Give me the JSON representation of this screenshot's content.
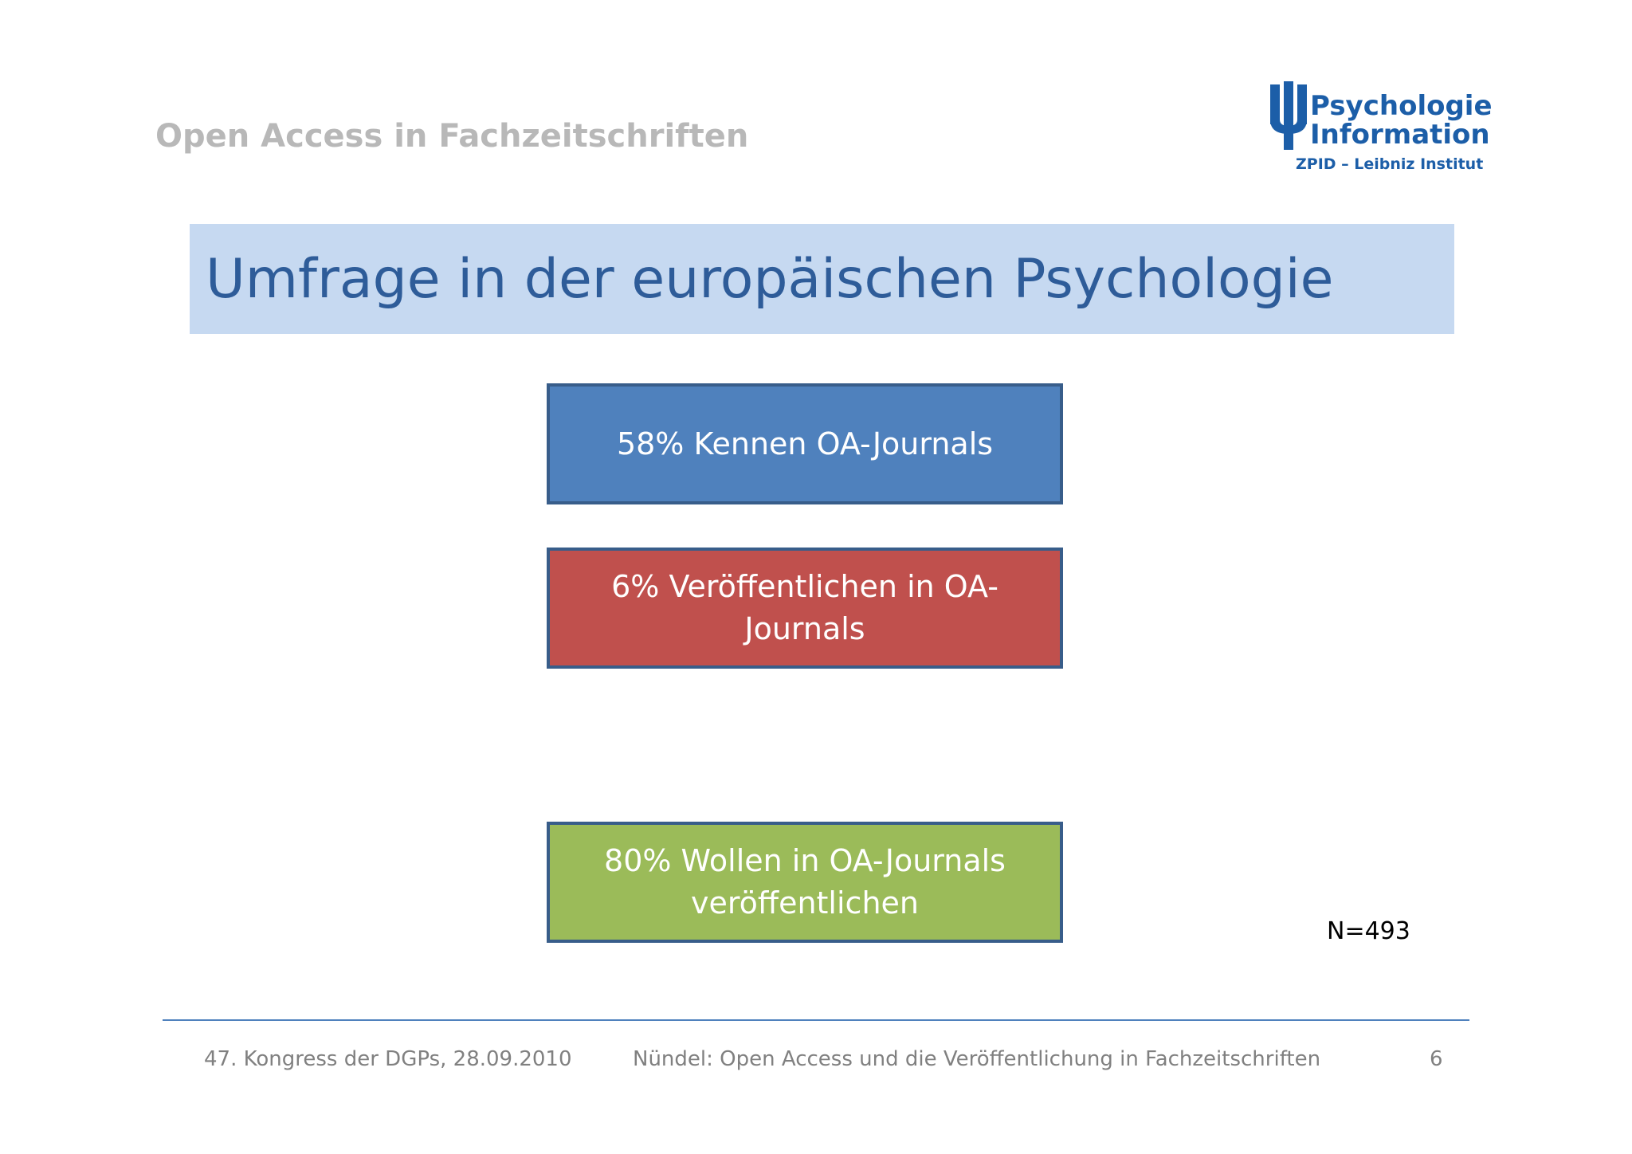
{
  "header": {
    "title": "Open Access in Fachzeitschriften",
    "logo": {
      "line1": "Psychologie",
      "line2": "Information",
      "line3": "ZPID – Leibniz Institut",
      "color": "#1c5ea8"
    }
  },
  "slide": {
    "title": "Umfrage in der europäischen Psychologie",
    "boxes": [
      {
        "text": "58% Kennen OA-Journals",
        "color": "#4f81bd"
      },
      {
        "text": "6%   Veröffentlichen in OA-\nJournals",
        "color": "#c0504d"
      },
      {
        "text": "80% Wollen in OA-Journals\nveröffentlichen",
        "color": "#9bbb59"
      }
    ],
    "sample_size": "N=493"
  },
  "footer": {
    "left": "47. Kongress der DGPs, 28.09.2010",
    "center": "Nündel: Open Access und die Veröffentlichung in Fachzeitschriften",
    "page_number": "6"
  }
}
